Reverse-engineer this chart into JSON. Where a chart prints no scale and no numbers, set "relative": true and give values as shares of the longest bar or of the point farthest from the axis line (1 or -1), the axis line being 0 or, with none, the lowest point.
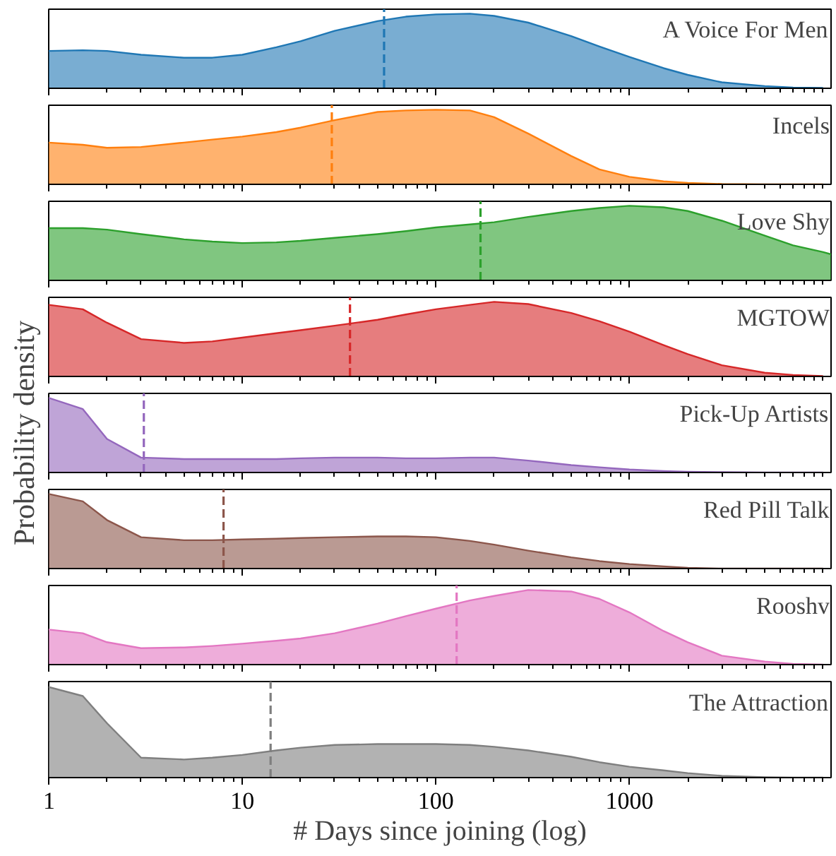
{
  "chart_data": [
    {
      "type": "area",
      "title": "A Voice For Men",
      "relative": true,
      "log": "x",
      "xlim": [
        1,
        11000
      ],
      "xticks": [
        1,
        10,
        100,
        1000
      ],
      "tick_labels": false,
      "x": [
        1,
        1.5,
        2,
        3,
        5,
        7,
        10,
        15,
        20,
        30,
        50,
        70,
        100,
        150,
        200,
        300,
        500,
        700,
        1000,
        1500,
        2000,
        3000,
        5000,
        7000,
        10000
      ],
      "series": [
        {
          "color": "#1f77b4",
          "values": [
            0.5,
            0.51,
            0.5,
            0.45,
            0.41,
            0.41,
            0.45,
            0.55,
            0.63,
            0.77,
            0.9,
            0.96,
            0.99,
            1.0,
            0.97,
            0.88,
            0.7,
            0.56,
            0.42,
            0.27,
            0.18,
            0.08,
            0.03,
            0.01,
            0.005
          ]
        }
      ],
      "ref_lines": [
        {
          "axis": "x",
          "value": 54,
          "color": "#1f77b4",
          "line_style": "dashed"
        }
      ]
    },
    {
      "type": "area",
      "title": "Incels",
      "relative": true,
      "log": "x",
      "xlim": [
        1,
        11000
      ],
      "xticks": [
        1,
        10,
        100,
        1000
      ],
      "tick_labels": false,
      "x": [
        1,
        1.5,
        2,
        3,
        5,
        7,
        10,
        15,
        20,
        30,
        50,
        70,
        100,
        150,
        200,
        300,
        500,
        700,
        1000,
        1500,
        2000,
        3000,
        5000,
        7000,
        10000
      ],
      "series": [
        {
          "color": "#ff7f0e",
          "values": [
            0.56,
            0.53,
            0.49,
            0.5,
            0.56,
            0.6,
            0.64,
            0.7,
            0.76,
            0.86,
            0.97,
            0.99,
            1.0,
            0.99,
            0.9,
            0.68,
            0.38,
            0.2,
            0.1,
            0.04,
            0.02,
            0.005,
            0,
            0,
            0
          ]
        }
      ],
      "ref_lines": [
        {
          "axis": "x",
          "value": 29,
          "color": "#ff7f0e",
          "line_style": "dashed"
        }
      ]
    },
    {
      "type": "area",
      "title": "Love Shy",
      "relative": true,
      "log": "x",
      "xlim": [
        1,
        11000
      ],
      "xticks": [
        1,
        10,
        100,
        1000
      ],
      "tick_labels": false,
      "x": [
        1,
        1.5,
        2,
        3,
        5,
        7,
        10,
        15,
        20,
        30,
        50,
        70,
        100,
        150,
        200,
        300,
        500,
        700,
        1000,
        1500,
        2000,
        3000,
        5000,
        7000,
        10000,
        11000
      ],
      "series": [
        {
          "color": "#2ca02c",
          "values": [
            0.7,
            0.7,
            0.68,
            0.62,
            0.55,
            0.52,
            0.5,
            0.51,
            0.53,
            0.57,
            0.62,
            0.66,
            0.71,
            0.75,
            0.78,
            0.85,
            0.93,
            0.97,
            1.0,
            0.98,
            0.93,
            0.8,
            0.6,
            0.47,
            0.38,
            0.35
          ]
        }
      ],
      "ref_lines": [
        {
          "axis": "x",
          "value": 170,
          "color": "#2ca02c",
          "line_style": "dashed"
        }
      ]
    },
    {
      "type": "area",
      "title": "MGTOW",
      "relative": true,
      "log": "x",
      "xlim": [
        1,
        11000
      ],
      "xticks": [
        1,
        10,
        100,
        1000
      ],
      "tick_labels": false,
      "x": [
        1,
        1.5,
        2,
        3,
        5,
        7,
        10,
        15,
        20,
        30,
        50,
        70,
        100,
        150,
        200,
        300,
        500,
        700,
        1000,
        1500,
        2000,
        3000,
        5000,
        7000,
        10000
      ],
      "series": [
        {
          "color": "#d62728",
          "values": [
            0.96,
            0.9,
            0.72,
            0.5,
            0.45,
            0.47,
            0.52,
            0.58,
            0.62,
            0.68,
            0.76,
            0.83,
            0.9,
            0.96,
            1.0,
            0.97,
            0.85,
            0.74,
            0.6,
            0.42,
            0.3,
            0.15,
            0.05,
            0.02,
            0.005
          ]
        }
      ],
      "ref_lines": [
        {
          "axis": "x",
          "value": 36,
          "color": "#d62728",
          "line_style": "dashed"
        }
      ]
    },
    {
      "type": "area",
      "title": "Pick-Up Artists",
      "ylabel": "Probability density",
      "relative": true,
      "log": "x",
      "xlim": [
        1,
        11000
      ],
      "xticks": [
        1,
        10,
        100,
        1000
      ],
      "tick_labels": false,
      "x": [
        1,
        1.5,
        2,
        3,
        5,
        7,
        10,
        15,
        20,
        30,
        50,
        70,
        100,
        150,
        200,
        300,
        500,
        700,
        1000,
        1500,
        2000,
        3000,
        5000,
        7000,
        10000
      ],
      "series": [
        {
          "color": "#9467bd",
          "values": [
            1.0,
            0.85,
            0.45,
            0.2,
            0.18,
            0.18,
            0.18,
            0.18,
            0.19,
            0.2,
            0.2,
            0.19,
            0.19,
            0.2,
            0.2,
            0.16,
            0.1,
            0.07,
            0.04,
            0.02,
            0.01,
            0.005,
            0,
            0,
            0
          ]
        }
      ],
      "ref_lines": [
        {
          "axis": "x",
          "value": 3.1,
          "color": "#9467bd",
          "line_style": "dashed"
        }
      ]
    },
    {
      "type": "area",
      "title": "Red Pill Talk",
      "relative": true,
      "log": "x",
      "xlim": [
        1,
        11000
      ],
      "xticks": [
        1,
        10,
        100,
        1000
      ],
      "tick_labels": false,
      "x": [
        1,
        1.5,
        2,
        3,
        5,
        7,
        10,
        15,
        20,
        30,
        50,
        70,
        100,
        150,
        200,
        300,
        500,
        700,
        1000,
        1500,
        2000,
        3000,
        5000,
        7000,
        10000
      ],
      "series": [
        {
          "color": "#8c564b",
          "values": [
            1.0,
            0.9,
            0.65,
            0.42,
            0.38,
            0.38,
            0.39,
            0.4,
            0.41,
            0.42,
            0.43,
            0.43,
            0.42,
            0.37,
            0.32,
            0.24,
            0.15,
            0.1,
            0.06,
            0.03,
            0.01,
            0,
            0,
            0,
            0
          ]
        }
      ],
      "ref_lines": [
        {
          "axis": "x",
          "value": 8,
          "color": "#8c564b",
          "line_style": "dashed"
        }
      ]
    },
    {
      "type": "area",
      "title": "Rooshv",
      "relative": true,
      "log": "x",
      "xlim": [
        1,
        11000
      ],
      "xticks": [
        1,
        10,
        100,
        1000
      ],
      "tick_labels": false,
      "x": [
        1,
        1.5,
        2,
        3,
        5,
        7,
        10,
        15,
        20,
        30,
        50,
        70,
        100,
        150,
        200,
        300,
        500,
        700,
        1000,
        1500,
        2000,
        3000,
        5000,
        7000,
        10000
      ],
      "series": [
        {
          "color": "#e377c2",
          "values": [
            0.47,
            0.42,
            0.3,
            0.22,
            0.23,
            0.25,
            0.28,
            0.32,
            0.35,
            0.42,
            0.55,
            0.65,
            0.75,
            0.86,
            0.92,
            1.0,
            0.98,
            0.88,
            0.7,
            0.45,
            0.3,
            0.12,
            0.04,
            0.01,
            0
          ]
        }
      ],
      "ref_lines": [
        {
          "axis": "x",
          "value": 128,
          "color": "#e377c2",
          "line_style": "dashed"
        }
      ]
    },
    {
      "type": "area",
      "title": "The Attraction",
      "xlabel": "# Days since joining (log)",
      "relative": true,
      "log": "x",
      "xlim": [
        1,
        11000
      ],
      "xticks": [
        1,
        10,
        100,
        1000
      ],
      "tick_labels": "x",
      "x": [
        1,
        1.5,
        2,
        3,
        5,
        7,
        10,
        15,
        20,
        30,
        50,
        70,
        100,
        150,
        200,
        300,
        500,
        700,
        1000,
        1500,
        2000,
        3000,
        5000,
        7000,
        10000
      ],
      "series": [
        {
          "color": "#7f7f7f",
          "values": [
            1.0,
            0.9,
            0.6,
            0.22,
            0.2,
            0.22,
            0.25,
            0.3,
            0.33,
            0.36,
            0.37,
            0.37,
            0.37,
            0.36,
            0.34,
            0.3,
            0.23,
            0.17,
            0.12,
            0.08,
            0.05,
            0.02,
            0.005,
            0,
            0
          ]
        }
      ],
      "ref_lines": [
        {
          "axis": "x",
          "value": 14,
          "color": "#7f7f7f",
          "line_style": "dashed"
        }
      ]
    }
  ]
}
